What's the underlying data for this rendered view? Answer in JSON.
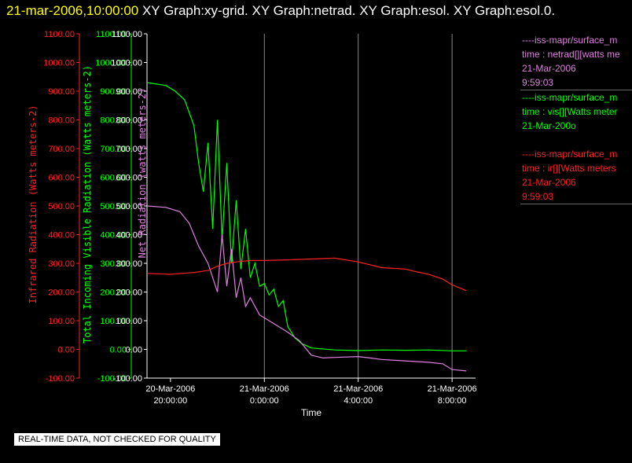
{
  "header": {
    "timestamp": "21-mar-2006,10:00:00",
    "graphs": "XY Graph:xy-grid.  XY Graph:netrad.  XY Graph:esol.  XY Graph:esol.0."
  },
  "colors": {
    "background": "#000000",
    "infrared": "#ff2020",
    "visible": "#00ff00",
    "netrad": "#e080e0",
    "axis_text": "#ffffff",
    "title_timestamp": "#ffff00"
  },
  "legend": [
    {
      "color": "#e080e0",
      "lines": [
        "----iss-mapr/surface_m",
        "time : netrad[][watts me",
        "21-Mar-2006",
        "9:59:03"
      ]
    },
    {
      "color": "#00ff00",
      "lines": [
        "----iss-mapr/surface_m",
        "time : vis[][Watts meter",
        "21-Mar-200o"
      ]
    },
    {
      "color": "#ff2020",
      "lines": [
        "----iss-mapr/surface_m",
        "time : ir[][Watts meters",
        "21-Mar-2006",
        "9:59:03"
      ]
    }
  ],
  "footer": {
    "note": "REAL-TIME DATA, NOT CHECKED FOR QUALITY"
  },
  "chart_data": {
    "type": "line",
    "xlabel": "Time",
    "x_range_hours_from_20mar_2000": [
      0,
      14
    ],
    "x_ticks": [
      {
        "line1": "20-Mar-2006",
        "line2": "20:00:00"
      },
      {
        "line1": "21-Mar-2006",
        "line2": "0:00:00"
      },
      {
        "line1": "21-Mar-2006",
        "line2": "4:00:00"
      },
      {
        "line1": "21-Mar-2006",
        "line2": "8:00:00"
      }
    ],
    "y_axes": [
      {
        "label": "Infrared Radiation (Watts meters-2)",
        "color": "#ff2020",
        "ylim": [
          -100,
          1100
        ]
      },
      {
        "label": "Total Incoming Visible Radiation (Watts meters-2)",
        "color": "#00ff00",
        "ylim": [
          -100,
          1100
        ]
      },
      {
        "label": "Net Radiation (watts meters-2)",
        "color": "#e080e0",
        "ylim": [
          -100,
          1100
        ]
      }
    ],
    "y_ticks": [
      "1100.00",
      "1000.00",
      "900.00",
      "800.00",
      "700.00",
      "600.00",
      "500.00",
      "400.00",
      "300.00",
      "200.00",
      "100.00",
      "0.00",
      "-100.00"
    ],
    "grid": "vertical",
    "series": [
      {
        "name": "vis",
        "color": "#00ff00",
        "x": [
          0,
          0.8,
          1.2,
          1.6,
          2.0,
          2.2,
          2.4,
          2.6,
          2.8,
          3.0,
          3.2,
          3.4,
          3.6,
          3.8,
          4.0,
          4.2,
          4.4,
          4.6,
          4.8,
          5.0,
          5.2,
          5.4,
          5.6,
          5.8,
          6.0,
          6.3,
          6.6,
          7.0,
          8.0,
          9.0,
          10.0,
          11.0,
          12.0,
          13.0,
          13.6
        ],
        "y": [
          930,
          920,
          900,
          870,
          780,
          650,
          550,
          720,
          420,
          800,
          380,
          650,
          300,
          520,
          280,
          420,
          250,
          300,
          220,
          230,
          190,
          210,
          150,
          170,
          80,
          40,
          20,
          5,
          -2,
          -4,
          -2,
          -3,
          -2,
          -5,
          -5
        ]
      },
      {
        "name": "netrad",
        "color": "#e080e0",
        "x": [
          0,
          0.8,
          1.4,
          1.8,
          2.2,
          2.6,
          3.0,
          3.2,
          3.4,
          3.6,
          3.8,
          4.0,
          4.2,
          4.4,
          4.8,
          5.2,
          5.6,
          6.0,
          6.5,
          7.0,
          7.5,
          8.0,
          9.0,
          9.5,
          10.0,
          11.0,
          12.0,
          12.6,
          13.0,
          13.6
        ],
        "y": [
          500,
          495,
          480,
          440,
          360,
          300,
          200,
          400,
          220,
          350,
          180,
          250,
          150,
          180,
          120,
          100,
          80,
          60,
          30,
          -20,
          -30,
          -28,
          -25,
          -30,
          -35,
          -40,
          -45,
          -50,
          -70,
          -75
        ]
      },
      {
        "name": "ir",
        "color": "#ff2020",
        "x": [
          0,
          1.0,
          2.0,
          2.6,
          3.0,
          3.4,
          3.8,
          4.4,
          5.0,
          6.0,
          7.0,
          8.0,
          9.0,
          10.0,
          11.0,
          11.5,
          12.0,
          12.6,
          13.0,
          13.6
        ],
        "y": [
          265,
          262,
          268,
          275,
          290,
          300,
          305,
          310,
          310,
          312,
          315,
          318,
          305,
          285,
          280,
          270,
          262,
          245,
          225,
          205
        ]
      }
    ]
  }
}
